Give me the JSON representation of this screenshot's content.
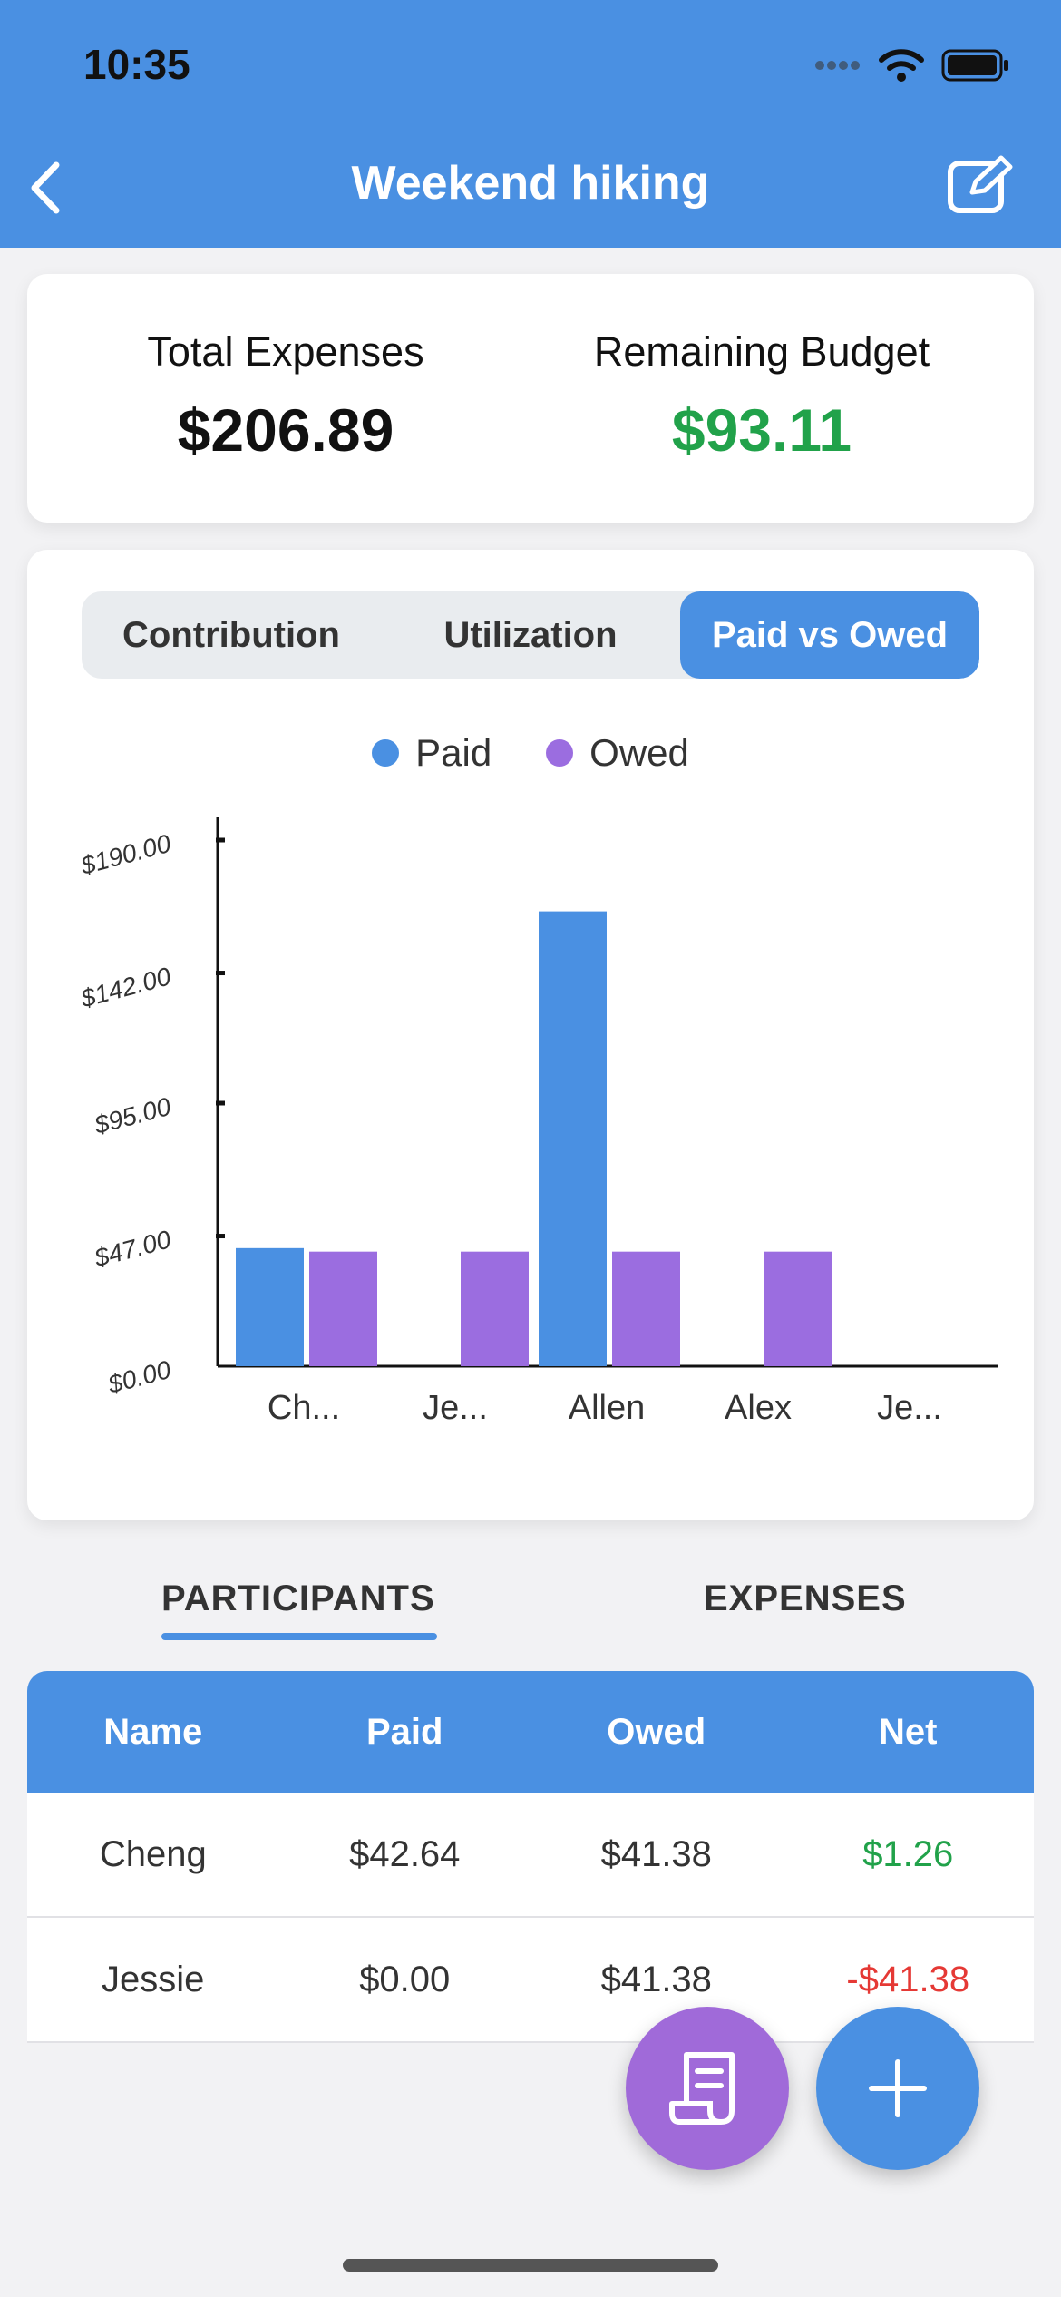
{
  "status_bar": {
    "time": "10:35"
  },
  "header": {
    "title": "Weekend hiking"
  },
  "summary": {
    "total_label": "Total Expenses",
    "total_value": "$206.89",
    "remaining_label": "Remaining Budget",
    "remaining_value": "$93.11"
  },
  "segments": [
    {
      "label": "Contribution",
      "active": false
    },
    {
      "label": "Utilization",
      "active": false
    },
    {
      "label": "Paid vs Owed",
      "active": true
    }
  ],
  "colors": {
    "primary": "#4a90e2",
    "paid": "#4a90e2",
    "owed": "#9b6de0",
    "positive": "#21a24a",
    "negative": "#e53935",
    "fab_receipt": "#a06ad9"
  },
  "chart_data": {
    "type": "bar",
    "categories": [
      "Ch...",
      "Je...",
      "Allen",
      "Alex",
      "Je..."
    ],
    "series": [
      {
        "name": "Paid",
        "values": [
          42.64,
          0,
          164.25,
          0,
          0
        ]
      },
      {
        "name": "Owed",
        "values": [
          41.38,
          41.38,
          41.38,
          41.38,
          0
        ]
      }
    ],
    "y_ticks": [
      "$0.00",
      "$47.00",
      "$95.00",
      "$142.00",
      "$190.00"
    ],
    "ylim": [
      0,
      190
    ],
    "legend_position": "top"
  },
  "tabs": {
    "participants": "PARTICIPANTS",
    "expenses": "EXPENSES"
  },
  "table": {
    "headers": [
      "Name",
      "Paid",
      "Owed",
      "Net"
    ],
    "rows": [
      {
        "name": "Cheng",
        "paid": "$42.64",
        "owed": "$41.38",
        "net": "$1.26",
        "sign": "pos"
      },
      {
        "name": "Jessie",
        "paid": "$0.00",
        "owed": "$41.38",
        "net": "-$41.38",
        "sign": "neg"
      }
    ]
  }
}
